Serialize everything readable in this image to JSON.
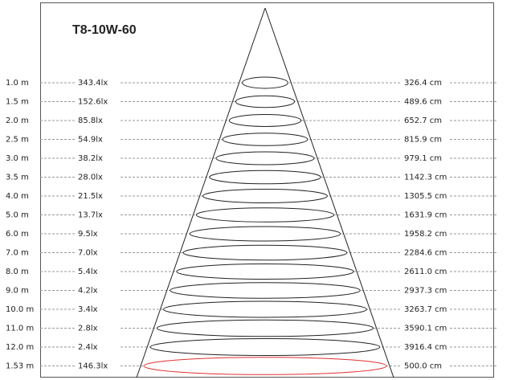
{
  "title": "T8-10W-60",
  "rows": [
    {
      "distance": "1.0 m",
      "illuminance": "343.4lx",
      "diameter": "326.4 cm"
    },
    {
      "distance": "1.5 m",
      "illuminance": "152.6lx",
      "diameter": "489.6 cm"
    },
    {
      "distance": "2.0 m",
      "illuminance": "85.8lx",
      "diameter": "652.7 cm"
    },
    {
      "distance": "2.5 m",
      "illuminance": "54.9lx",
      "diameter": "815.9 cm"
    },
    {
      "distance": "3.0 m",
      "illuminance": "38.2lx",
      "diameter": "979.1 cm"
    },
    {
      "distance": "3.5 m",
      "illuminance": "28.0lx",
      "diameter": "1142.3 cm"
    },
    {
      "distance": "4.0 m",
      "illuminance": "21.5lx",
      "diameter": "1305.5 cm"
    },
    {
      "distance": "5.0 m",
      "illuminance": "13.7lx",
      "diameter": "1631.9 cm"
    },
    {
      "distance": "6.0 m",
      "illuminance": "9.5lx",
      "diameter": "1958.2 cm"
    },
    {
      "distance": "7.0 m",
      "illuminance": "7.0lx",
      "diameter": "2284.6 cm"
    },
    {
      "distance": "8.0 m",
      "illuminance": "5.4lx",
      "diameter": "2611.0 cm"
    },
    {
      "distance": "9.0 m",
      "illuminance": "4.2lx",
      "diameter": "2937.3 cm"
    },
    {
      "distance": "10.0 m",
      "illuminance": "3.4lx",
      "diameter": "3263.7 cm"
    },
    {
      "distance": "11.0 m",
      "illuminance": "2.8lx",
      "diameter": "3590.1 cm"
    },
    {
      "distance": "12.0 m",
      "illuminance": "2.4lx",
      "diameter": "3916.4 cm"
    },
    {
      "distance": "1.53 m",
      "illuminance": "146.3lx",
      "diameter": "500.0 cm"
    }
  ]
}
